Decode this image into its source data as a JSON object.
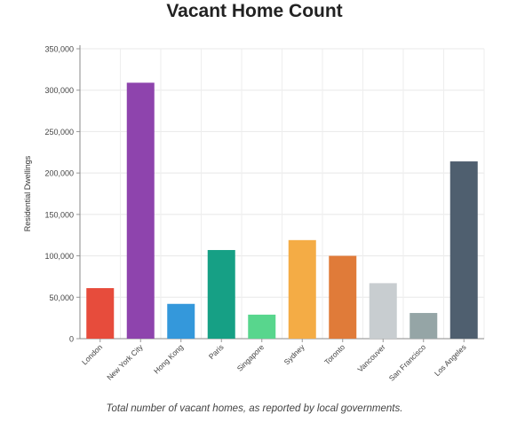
{
  "chart_data": {
    "type": "bar",
    "title": "Vacant Home Count",
    "ylabel": "Residential Dwellings",
    "xlabel": "",
    "caption": "Total number of vacant homes, as reported by local governments.",
    "ylim": [
      0,
      350000
    ],
    "y_ticks": [
      0,
      50000,
      100000,
      150000,
      200000,
      250000,
      300000,
      350000
    ],
    "y_tick_labels": [
      "0",
      "50,000",
      "100,000",
      "150,000",
      "200,000",
      "250,000",
      "300,000",
      "350,000"
    ],
    "grid": true,
    "categories": [
      "London",
      "New York City",
      "Hong Kong",
      "Paris",
      "Singapore",
      "Sydney",
      "Toronto",
      "Vancouver",
      "San Francisco",
      "Los Angeles"
    ],
    "values": [
      61000,
      309000,
      42000,
      107000,
      29000,
      119000,
      100000,
      67000,
      31000,
      214000
    ],
    "colors": [
      "#e74c3c",
      "#8e44ad",
      "#3498db",
      "#16a085",
      "#58d68d",
      "#f4ac45",
      "#e07b39",
      "#c8cdd0",
      "#95a5a6",
      "#4f5f6f"
    ]
  }
}
